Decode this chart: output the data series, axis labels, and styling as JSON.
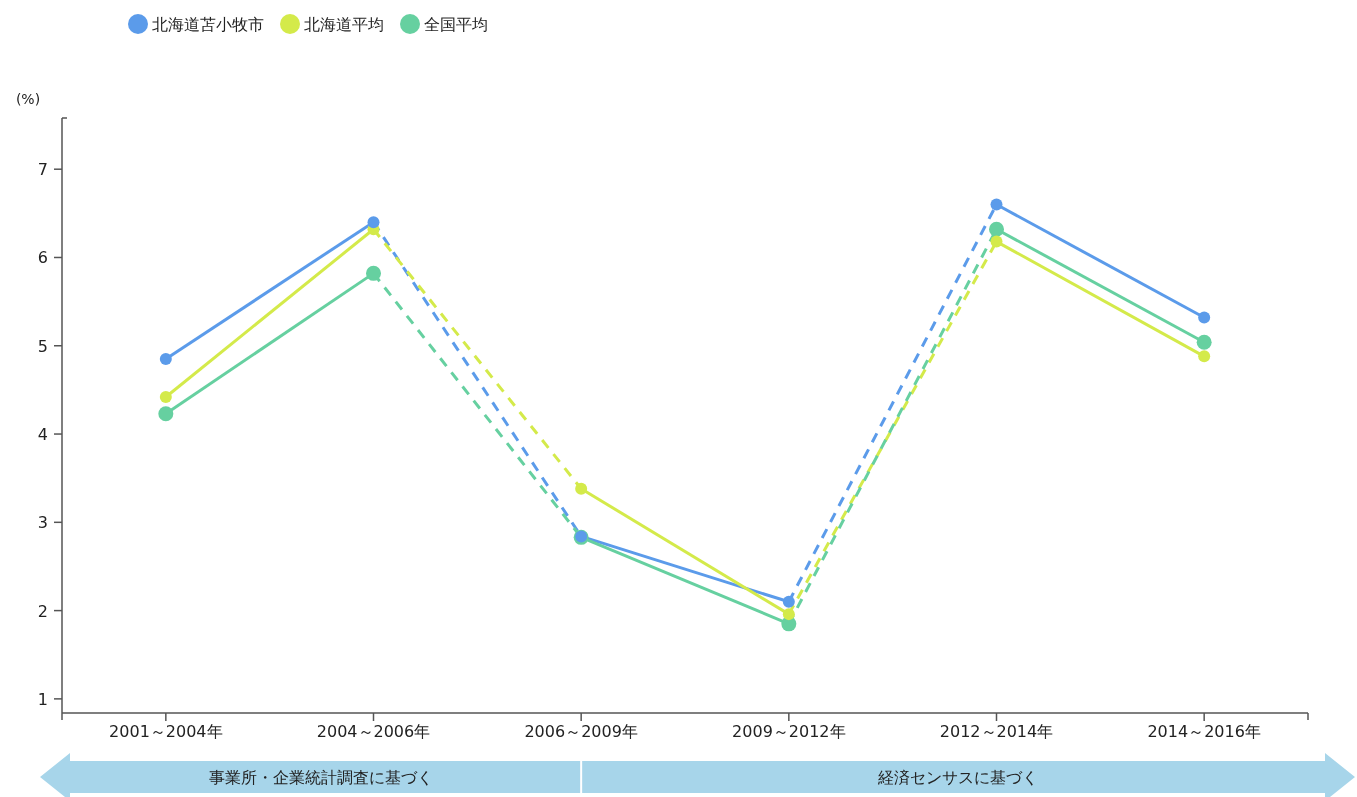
{
  "chart_data": {
    "type": "line",
    "ylabel": "(%)",
    "categories": [
      "2001～2004年",
      "2004～2006年",
      "2006～2009年",
      "2009～2012年",
      "2012～2014年",
      "2014～2016年"
    ],
    "ylim": [
      0.84,
      7.58
    ],
    "yticks": [
      1,
      2,
      3,
      4,
      5,
      6,
      7
    ],
    "grid": false,
    "legend": "top left",
    "series": [
      {
        "name": "北海道苫小牧市",
        "type": "scatter",
        "marker": "circle",
        "color": "#5b9bea",
        "values": [
          4.85,
          6.4,
          2.84,
          2.1,
          6.6,
          5.32
        ]
      },
      {
        "name": "北海道平均",
        "type": "scatter",
        "marker": "circle",
        "color": "#d4ea4a",
        "values": [
          4.42,
          6.32,
          3.38,
          1.96,
          6.18,
          4.88
        ]
      },
      {
        "name": "全国平均",
        "type": "scatter",
        "marker": "circle",
        "color": "#66d0a0",
        "values": [
          4.23,
          5.82,
          2.83,
          1.85,
          6.32,
          5.04
        ]
      },
      {
        "type": "line",
        "line_style": "solid",
        "color": "#5b9bea",
        "values": [
          4.85,
          6.4,
          null,
          null,
          null,
          null
        ]
      },
      {
        "type": "line",
        "line_style": "dashed",
        "color": "#5b9bea",
        "values": [
          null,
          6.4,
          2.84,
          null,
          null,
          null
        ]
      },
      {
        "type": "line",
        "line_style": "solid",
        "color": "#5b9bea",
        "values": [
          null,
          null,
          2.84,
          2.1,
          null,
          null
        ]
      },
      {
        "type": "line",
        "line_style": "dashed",
        "color": "#5b9bea",
        "values": [
          null,
          null,
          null,
          2.1,
          6.6,
          null
        ]
      },
      {
        "type": "line",
        "line_style": "solid",
        "color": "#5b9bea",
        "values": [
          null,
          null,
          null,
          null,
          6.6,
          5.32
        ]
      },
      {
        "type": "line",
        "line_style": "solid",
        "color": "#d4ea4a",
        "values": [
          4.42,
          6.32,
          null,
          null,
          null,
          null
        ]
      },
      {
        "type": "line",
        "line_style": "dashed",
        "color": "#d4ea4a",
        "values": [
          null,
          6.32,
          3.38,
          null,
          null,
          null
        ]
      },
      {
        "type": "line",
        "line_style": "solid",
        "color": "#d4ea4a",
        "values": [
          null,
          null,
          3.38,
          1.96,
          null,
          null
        ]
      },
      {
        "type": "line",
        "line_style": "dashed",
        "color": "#d4ea4a",
        "values": [
          null,
          null,
          null,
          1.96,
          6.18,
          null
        ]
      },
      {
        "type": "line",
        "line_style": "solid",
        "color": "#d4ea4a",
        "values": [
          null,
          null,
          null,
          null,
          6.18,
          4.88
        ]
      },
      {
        "type": "line",
        "line_style": "solid",
        "color": "#66d0a0",
        "values": [
          4.23,
          5.82,
          null,
          null,
          null,
          null
        ]
      },
      {
        "type": "line",
        "line_style": "dashed",
        "color": "#66d0a0",
        "values": [
          null,
          5.82,
          2.83,
          null,
          null,
          null
        ]
      },
      {
        "type": "line",
        "line_style": "solid",
        "color": "#66d0a0",
        "values": [
          null,
          null,
          2.83,
          1.85,
          null,
          null
        ]
      },
      {
        "type": "line",
        "line_style": "dashed",
        "color": "#66d0a0",
        "values": [
          null,
          null,
          null,
          1.85,
          6.32,
          null
        ]
      },
      {
        "type": "line",
        "line_style": "solid",
        "color": "#66d0a0",
        "values": [
          null,
          null,
          null,
          null,
          6.32,
          5.04
        ]
      }
    ],
    "annotations": [
      "事業所・企業統計調査に基づく",
      "経済センサスに基づく"
    ]
  }
}
